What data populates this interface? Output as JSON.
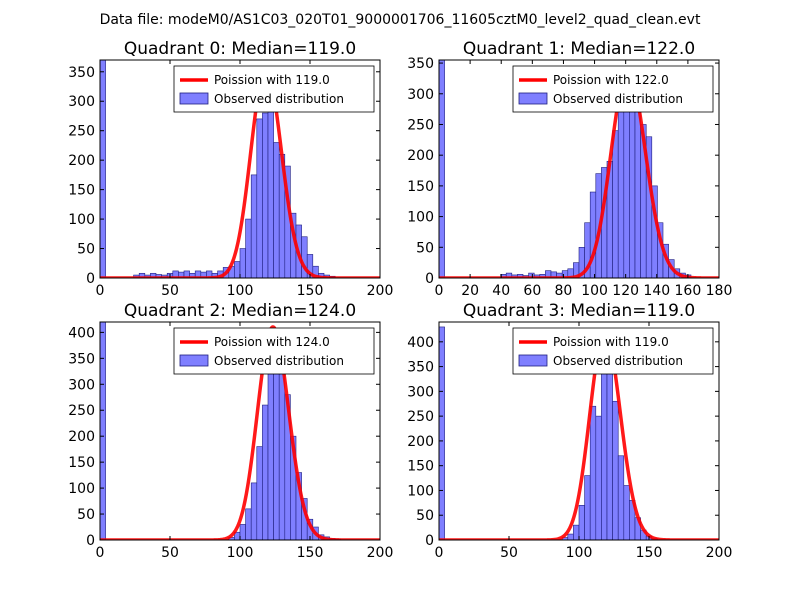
{
  "figure": {
    "suptitle": "Data file: modeM0/AS1C03_020T01_9000001706_11605cztM0_level2_quad_clean.evt"
  },
  "colors": {
    "bar_fill": "#7f7fff",
    "bar_edge": "#1f1f7f",
    "curve": "#ff0000"
  },
  "chart_data": [
    {
      "type": "bar",
      "title": "Quadrant 0: Median=119.0",
      "xlim": [
        0,
        200
      ],
      "ylim": [
        0,
        370
      ],
      "xticks": [
        0,
        50,
        100,
        150,
        200
      ],
      "xtick_labels": [
        "0",
        "50",
        "100",
        "150",
        "200"
      ],
      "yticks": [
        0,
        50,
        100,
        150,
        200,
        250,
        300,
        350
      ],
      "ytick_labels": [
        "0",
        "50",
        "100",
        "150",
        "200",
        "250",
        "300",
        "350"
      ],
      "legend": {
        "curve_label": "Poission with 119.0",
        "bar_label": "Observed distribution",
        "placement": "top-right"
      },
      "bin_width": 4,
      "bins": [
        {
          "x": 0,
          "y": 370
        },
        {
          "x": 24,
          "y": 5
        },
        {
          "x": 28,
          "y": 8
        },
        {
          "x": 32,
          "y": 5
        },
        {
          "x": 36,
          "y": 8
        },
        {
          "x": 40,
          "y": 6
        },
        {
          "x": 44,
          "y": 5
        },
        {
          "x": 48,
          "y": 8
        },
        {
          "x": 52,
          "y": 12
        },
        {
          "x": 56,
          "y": 10
        },
        {
          "x": 60,
          "y": 12
        },
        {
          "x": 64,
          "y": 8
        },
        {
          "x": 68,
          "y": 12
        },
        {
          "x": 72,
          "y": 10
        },
        {
          "x": 76,
          "y": 12
        },
        {
          "x": 80,
          "y": 8
        },
        {
          "x": 84,
          "y": 12
        },
        {
          "x": 88,
          "y": 18
        },
        {
          "x": 92,
          "y": 20
        },
        {
          "x": 96,
          "y": 28
        },
        {
          "x": 100,
          "y": 50
        },
        {
          "x": 104,
          "y": 100
        },
        {
          "x": 108,
          "y": 175
        },
        {
          "x": 112,
          "y": 270
        },
        {
          "x": 116,
          "y": 280
        },
        {
          "x": 120,
          "y": 340
        },
        {
          "x": 124,
          "y": 230
        },
        {
          "x": 128,
          "y": 210
        },
        {
          "x": 132,
          "y": 190
        },
        {
          "x": 136,
          "y": 110
        },
        {
          "x": 140,
          "y": 90
        },
        {
          "x": 144,
          "y": 70
        },
        {
          "x": 148,
          "y": 40
        },
        {
          "x": 152,
          "y": 20
        },
        {
          "x": 156,
          "y": 8
        },
        {
          "x": 160,
          "y": 5
        },
        {
          "x": 164,
          "y": 3
        }
      ],
      "poisson_mean": 119.0,
      "poisson_peak": 355
    },
    {
      "type": "bar",
      "title": "Quadrant 1: Median=122.0",
      "xlim": [
        0,
        180
      ],
      "ylim": [
        0,
        355
      ],
      "xticks": [
        0,
        20,
        40,
        60,
        80,
        100,
        120,
        140,
        160,
        180
      ],
      "xtick_labels": [
        "0",
        "20",
        "40",
        "60",
        "80",
        "100",
        "120",
        "140",
        "160",
        "180"
      ],
      "yticks": [
        0,
        50,
        100,
        150,
        200,
        250,
        300,
        350
      ],
      "ytick_labels": [
        "0",
        "50",
        "100",
        "150",
        "200",
        "250",
        "300",
        "350"
      ],
      "legend": {
        "curve_label": "Poission with 122.0",
        "bar_label": "Observed distribution",
        "placement": "top-right"
      },
      "bin_width": 3.6,
      "bins": [
        {
          "x": 0,
          "y": 355
        },
        {
          "x": 39.6,
          "y": 6
        },
        {
          "x": 43.2,
          "y": 8
        },
        {
          "x": 46.8,
          "y": 5
        },
        {
          "x": 50.4,
          "y": 6
        },
        {
          "x": 54,
          "y": 4
        },
        {
          "x": 57.6,
          "y": 8
        },
        {
          "x": 61.2,
          "y": 5
        },
        {
          "x": 64.8,
          "y": 6
        },
        {
          "x": 68.4,
          "y": 12
        },
        {
          "x": 72,
          "y": 10
        },
        {
          "x": 75.6,
          "y": 8
        },
        {
          "x": 79.2,
          "y": 12
        },
        {
          "x": 82.8,
          "y": 15
        },
        {
          "x": 86.4,
          "y": 25
        },
        {
          "x": 90,
          "y": 50
        },
        {
          "x": 93.6,
          "y": 90
        },
        {
          "x": 97.2,
          "y": 140
        },
        {
          "x": 100.8,
          "y": 170
        },
        {
          "x": 104.4,
          "y": 180
        },
        {
          "x": 108,
          "y": 190
        },
        {
          "x": 111.6,
          "y": 240
        },
        {
          "x": 115.2,
          "y": 290
        },
        {
          "x": 118.8,
          "y": 320
        },
        {
          "x": 122.4,
          "y": 330
        },
        {
          "x": 126,
          "y": 300
        },
        {
          "x": 129.6,
          "y": 250
        },
        {
          "x": 133.2,
          "y": 230
        },
        {
          "x": 136.8,
          "y": 150
        },
        {
          "x": 140.4,
          "y": 90
        },
        {
          "x": 144,
          "y": 55
        },
        {
          "x": 147.6,
          "y": 30
        },
        {
          "x": 151.2,
          "y": 15
        },
        {
          "x": 154.8,
          "y": 8
        },
        {
          "x": 158.4,
          "y": 5
        }
      ],
      "poisson_mean": 122.0,
      "poisson_peak": 338
    },
    {
      "type": "bar",
      "title": "Quadrant 2: Median=124.0",
      "xlim": [
        0,
        200
      ],
      "ylim": [
        0,
        420
      ],
      "xticks": [
        0,
        50,
        100,
        150,
        200
      ],
      "xtick_labels": [
        "0",
        "50",
        "100",
        "150",
        "200"
      ],
      "yticks": [
        0,
        50,
        100,
        150,
        200,
        250,
        300,
        350,
        400
      ],
      "ytick_labels": [
        "0",
        "50",
        "100",
        "150",
        "200",
        "250",
        "300",
        "350",
        "400"
      ],
      "legend": {
        "curve_label": "Poission with 124.0",
        "bar_label": "Observed distribution",
        "placement": "top-right"
      },
      "bin_width": 4,
      "bins": [
        {
          "x": 0,
          "y": 420
        },
        {
          "x": 92,
          "y": 5
        },
        {
          "x": 96,
          "y": 15
        },
        {
          "x": 100,
          "y": 30
        },
        {
          "x": 104,
          "y": 60
        },
        {
          "x": 108,
          "y": 110
        },
        {
          "x": 112,
          "y": 180
        },
        {
          "x": 116,
          "y": 260
        },
        {
          "x": 120,
          "y": 340
        },
        {
          "x": 124,
          "y": 390
        },
        {
          "x": 128,
          "y": 340
        },
        {
          "x": 132,
          "y": 280
        },
        {
          "x": 136,
          "y": 200
        },
        {
          "x": 140,
          "y": 130
        },
        {
          "x": 144,
          "y": 80
        },
        {
          "x": 148,
          "y": 40
        },
        {
          "x": 152,
          "y": 25
        },
        {
          "x": 156,
          "y": 10
        },
        {
          "x": 160,
          "y": 6
        },
        {
          "x": 164,
          "y": 3
        },
        {
          "x": 168,
          "y": 2
        }
      ],
      "poisson_mean": 124.0,
      "poisson_peak": 410
    },
    {
      "type": "bar",
      "title": "Quadrant 3: Median=119.0",
      "xlim": [
        0,
        200
      ],
      "ylim": [
        0,
        440
      ],
      "xticks": [
        0,
        50,
        100,
        150,
        200
      ],
      "xtick_labels": [
        "0",
        "50",
        "100",
        "150",
        "200"
      ],
      "yticks": [
        0,
        50,
        100,
        150,
        200,
        250,
        300,
        350,
        400
      ],
      "ytick_labels": [
        "0",
        "50",
        "100",
        "150",
        "200",
        "250",
        "300",
        "350",
        "400"
      ],
      "legend": {
        "curve_label": "Poission with 119.0",
        "bar_label": "Observed distribution",
        "placement": "top-right"
      },
      "bin_width": 4,
      "bins": [
        {
          "x": 0,
          "y": 430
        },
        {
          "x": 88,
          "y": 5
        },
        {
          "x": 92,
          "y": 12
        },
        {
          "x": 96,
          "y": 30
        },
        {
          "x": 100,
          "y": 70
        },
        {
          "x": 104,
          "y": 130
        },
        {
          "x": 108,
          "y": 270
        },
        {
          "x": 112,
          "y": 250
        },
        {
          "x": 116,
          "y": 390
        },
        {
          "x": 120,
          "y": 400
        },
        {
          "x": 124,
          "y": 280
        },
        {
          "x": 128,
          "y": 170
        },
        {
          "x": 132,
          "y": 110
        },
        {
          "x": 136,
          "y": 80
        },
        {
          "x": 140,
          "y": 45
        },
        {
          "x": 144,
          "y": 20
        },
        {
          "x": 148,
          "y": 8
        },
        {
          "x": 152,
          "y": 3
        }
      ],
      "poisson_mean": 119.0,
      "poisson_peak": 420
    }
  ]
}
